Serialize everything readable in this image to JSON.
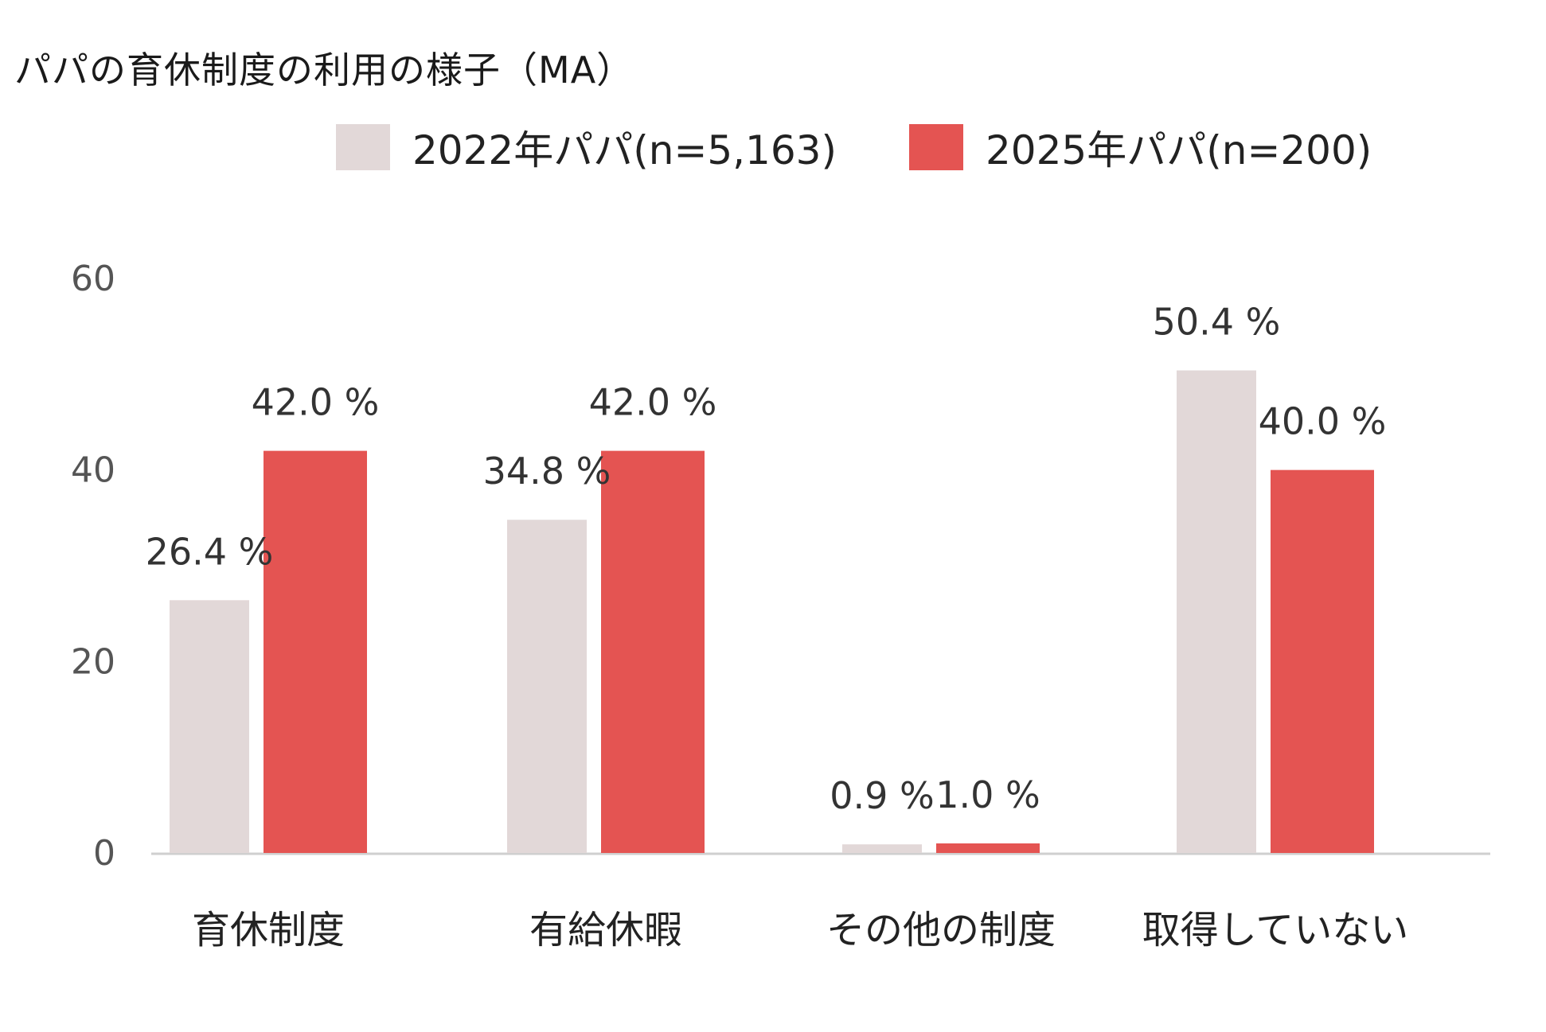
{
  "chart_data": {
    "type": "bar",
    "title": "パパの育休制度の利用の様子（MA）",
    "categories": [
      "育休制度",
      "有給休暇",
      "その他の制度",
      "取得していない"
    ],
    "series": [
      {
        "name": "2022年パパ(n=5,163)",
        "color": "#e2d8d8",
        "values": [
          26.4,
          34.8,
          0.9,
          50.4
        ],
        "labels": [
          "26.4 %",
          "34.8 %",
          "0.9 %",
          "50.4 %"
        ]
      },
      {
        "name": "2025年パパ(n=200)",
        "color": "#e45452",
        "values": [
          42.0,
          42.0,
          1.0,
          40.0
        ],
        "labels": [
          "42.0 %",
          "42.0 %",
          "1.0 %",
          "40.0 %"
        ]
      }
    ],
    "y_ticks": [
      "0",
      "20",
      "40",
      "60"
    ],
    "ylim": [
      0,
      60
    ],
    "grid": false,
    "legend_position": "top-right"
  }
}
